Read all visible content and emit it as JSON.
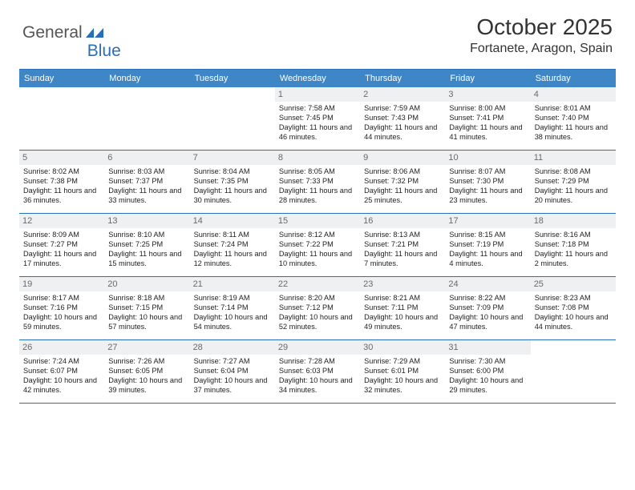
{
  "logo": {
    "text1": "General",
    "text2": "Blue"
  },
  "title": "October 2025",
  "location": "Fortanete, Aragon, Spain",
  "header_bg": "#3f86c7",
  "border_color": "#2a6db8",
  "daynum_bg": "#eef0f2",
  "day_headers": [
    "Sunday",
    "Monday",
    "Tuesday",
    "Wednesday",
    "Thursday",
    "Friday",
    "Saturday"
  ],
  "weeks": [
    [
      null,
      null,
      null,
      {
        "n": "1",
        "sr": "7:58 AM",
        "ss": "7:45 PM",
        "dl": "11 hours and 46 minutes."
      },
      {
        "n": "2",
        "sr": "7:59 AM",
        "ss": "7:43 PM",
        "dl": "11 hours and 44 minutes."
      },
      {
        "n": "3",
        "sr": "8:00 AM",
        "ss": "7:41 PM",
        "dl": "11 hours and 41 minutes."
      },
      {
        "n": "4",
        "sr": "8:01 AM",
        "ss": "7:40 PM",
        "dl": "11 hours and 38 minutes."
      }
    ],
    [
      {
        "n": "5",
        "sr": "8:02 AM",
        "ss": "7:38 PM",
        "dl": "11 hours and 36 minutes."
      },
      {
        "n": "6",
        "sr": "8:03 AM",
        "ss": "7:37 PM",
        "dl": "11 hours and 33 minutes."
      },
      {
        "n": "7",
        "sr": "8:04 AM",
        "ss": "7:35 PM",
        "dl": "11 hours and 30 minutes."
      },
      {
        "n": "8",
        "sr": "8:05 AM",
        "ss": "7:33 PM",
        "dl": "11 hours and 28 minutes."
      },
      {
        "n": "9",
        "sr": "8:06 AM",
        "ss": "7:32 PM",
        "dl": "11 hours and 25 minutes."
      },
      {
        "n": "10",
        "sr": "8:07 AM",
        "ss": "7:30 PM",
        "dl": "11 hours and 23 minutes."
      },
      {
        "n": "11",
        "sr": "8:08 AM",
        "ss": "7:29 PM",
        "dl": "11 hours and 20 minutes."
      }
    ],
    [
      {
        "n": "12",
        "sr": "8:09 AM",
        "ss": "7:27 PM",
        "dl": "11 hours and 17 minutes."
      },
      {
        "n": "13",
        "sr": "8:10 AM",
        "ss": "7:25 PM",
        "dl": "11 hours and 15 minutes."
      },
      {
        "n": "14",
        "sr": "8:11 AM",
        "ss": "7:24 PM",
        "dl": "11 hours and 12 minutes."
      },
      {
        "n": "15",
        "sr": "8:12 AM",
        "ss": "7:22 PM",
        "dl": "11 hours and 10 minutes."
      },
      {
        "n": "16",
        "sr": "8:13 AM",
        "ss": "7:21 PM",
        "dl": "11 hours and 7 minutes."
      },
      {
        "n": "17",
        "sr": "8:15 AM",
        "ss": "7:19 PM",
        "dl": "11 hours and 4 minutes."
      },
      {
        "n": "18",
        "sr": "8:16 AM",
        "ss": "7:18 PM",
        "dl": "11 hours and 2 minutes."
      }
    ],
    [
      {
        "n": "19",
        "sr": "8:17 AM",
        "ss": "7:16 PM",
        "dl": "10 hours and 59 minutes."
      },
      {
        "n": "20",
        "sr": "8:18 AM",
        "ss": "7:15 PM",
        "dl": "10 hours and 57 minutes."
      },
      {
        "n": "21",
        "sr": "8:19 AM",
        "ss": "7:14 PM",
        "dl": "10 hours and 54 minutes."
      },
      {
        "n": "22",
        "sr": "8:20 AM",
        "ss": "7:12 PM",
        "dl": "10 hours and 52 minutes."
      },
      {
        "n": "23",
        "sr": "8:21 AM",
        "ss": "7:11 PM",
        "dl": "10 hours and 49 minutes."
      },
      {
        "n": "24",
        "sr": "8:22 AM",
        "ss": "7:09 PM",
        "dl": "10 hours and 47 minutes."
      },
      {
        "n": "25",
        "sr": "8:23 AM",
        "ss": "7:08 PM",
        "dl": "10 hours and 44 minutes."
      }
    ],
    [
      {
        "n": "26",
        "sr": "7:24 AM",
        "ss": "6:07 PM",
        "dl": "10 hours and 42 minutes."
      },
      {
        "n": "27",
        "sr": "7:26 AM",
        "ss": "6:05 PM",
        "dl": "10 hours and 39 minutes."
      },
      {
        "n": "28",
        "sr": "7:27 AM",
        "ss": "6:04 PM",
        "dl": "10 hours and 37 minutes."
      },
      {
        "n": "29",
        "sr": "7:28 AM",
        "ss": "6:03 PM",
        "dl": "10 hours and 34 minutes."
      },
      {
        "n": "30",
        "sr": "7:29 AM",
        "ss": "6:01 PM",
        "dl": "10 hours and 32 minutes."
      },
      {
        "n": "31",
        "sr": "7:30 AM",
        "ss": "6:00 PM",
        "dl": "10 hours and 29 minutes."
      },
      null
    ]
  ],
  "labels": {
    "sunrise": "Sunrise:",
    "sunset": "Sunset:",
    "daylight": "Daylight:"
  }
}
